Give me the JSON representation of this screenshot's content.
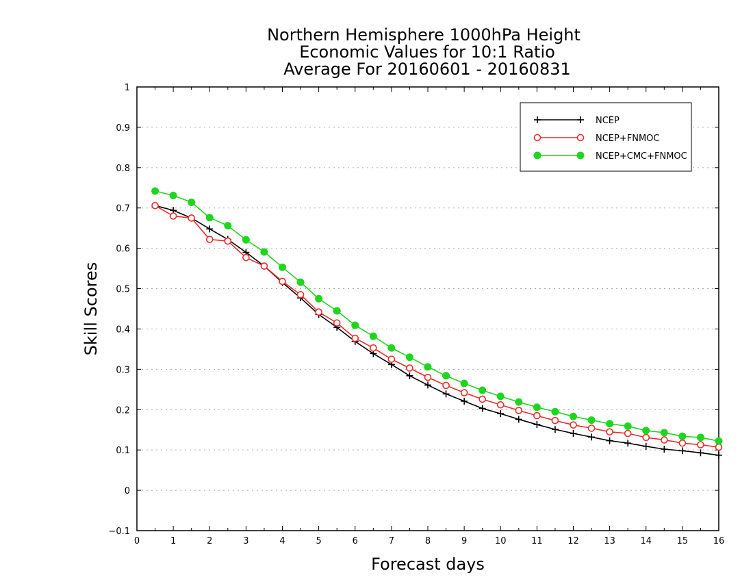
{
  "chart_data": {
    "type": "line",
    "title_lines": [
      "Northern Hemisphere 1000hPa Height",
      "Economic Values for 10:1 Ratio",
      "Average For 20160601 - 20160831"
    ],
    "xlabel": "Forecast days",
    "ylabel": "Skill Scores",
    "xlim": [
      0,
      16
    ],
    "ylim": [
      -0.1,
      1
    ],
    "xticks": [
      0,
      1,
      2,
      3,
      4,
      5,
      6,
      7,
      8,
      9,
      10,
      11,
      12,
      13,
      14,
      15,
      16
    ],
    "yticks": [
      -0.1,
      0,
      0.1,
      0.2,
      0.3,
      0.4,
      0.5,
      0.6,
      0.7,
      0.8,
      0.9,
      1
    ],
    "ytick_labels": [
      "−0.1",
      "0",
      "0.1",
      "0.2",
      "0.3",
      "0.4",
      "0.5",
      "0.6",
      "0.7",
      "0.8",
      "0.9",
      "1"
    ],
    "grid": "horizontal dotted",
    "legend_position": "top-right",
    "x": [
      0.5,
      1,
      1.5,
      2,
      2.5,
      3,
      3.5,
      4,
      4.5,
      5,
      5.5,
      6,
      6.5,
      7,
      7.5,
      8,
      8.5,
      9,
      9.5,
      10,
      10.5,
      11,
      11.5,
      12,
      12.5,
      13,
      13.5,
      14,
      14.5,
      15,
      15.5,
      16
    ],
    "series": [
      {
        "name": "NCEP",
        "color": "#000000",
        "marker": "plus",
        "values": [
          0.706,
          0.694,
          0.675,
          0.648,
          0.622,
          0.59,
          0.556,
          0.515,
          0.477,
          0.436,
          0.404,
          0.369,
          0.339,
          0.312,
          0.284,
          0.261,
          0.239,
          0.221,
          0.203,
          0.19,
          0.176,
          0.163,
          0.151,
          0.141,
          0.132,
          0.123,
          0.117,
          0.109,
          0.102,
          0.098,
          0.093,
          0.087
        ]
      },
      {
        "name": "NCEP+FNMOC",
        "color": "#ee2b2b",
        "marker": "open-circle",
        "values": [
          0.706,
          0.68,
          0.675,
          0.622,
          0.618,
          0.577,
          0.556,
          0.518,
          0.485,
          0.442,
          0.415,
          0.377,
          0.353,
          0.325,
          0.303,
          0.28,
          0.26,
          0.242,
          0.226,
          0.212,
          0.198,
          0.185,
          0.173,
          0.162,
          0.154,
          0.145,
          0.141,
          0.131,
          0.125,
          0.117,
          0.113,
          0.107
        ]
      },
      {
        "name": "NCEP+CMC+FNMOC",
        "color": "#1fd61f",
        "marker": "filled-circle",
        "values": [
          0.742,
          0.731,
          0.714,
          0.676,
          0.656,
          0.621,
          0.591,
          0.553,
          0.516,
          0.475,
          0.445,
          0.409,
          0.382,
          0.353,
          0.33,
          0.306,
          0.284,
          0.265,
          0.248,
          0.233,
          0.219,
          0.206,
          0.195,
          0.183,
          0.174,
          0.165,
          0.159,
          0.148,
          0.143,
          0.134,
          0.131,
          0.122
        ]
      }
    ]
  }
}
